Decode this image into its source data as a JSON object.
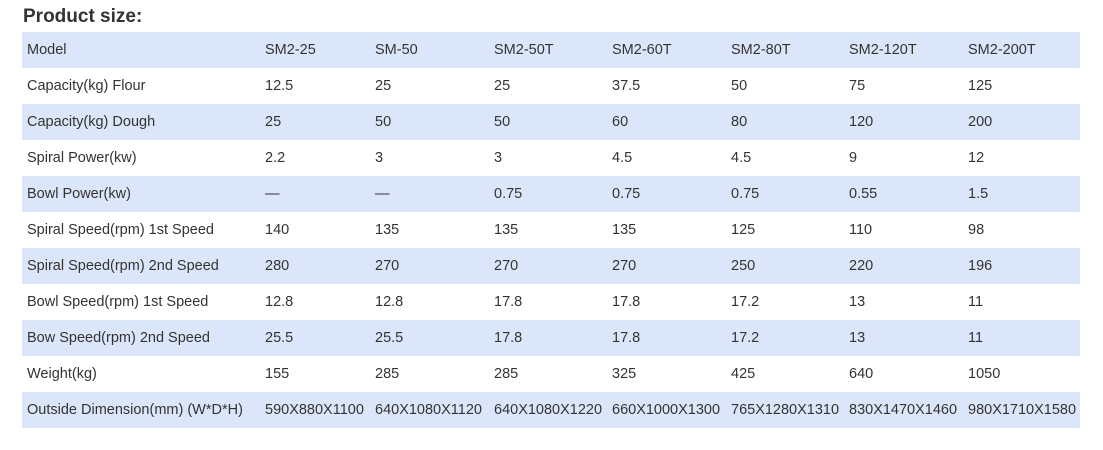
{
  "heading": "Product size:",
  "table": {
    "rows": [
      {
        "label": "Model",
        "cells": [
          "SM2-25",
          "SM-50",
          "SM2-50T",
          "SM2-60T",
          "SM2-80T",
          "SM2-120T",
          "SM2-200T"
        ]
      },
      {
        "label": "Capacity(kg) Flour",
        "cells": [
          "12.5",
          "25",
          "25",
          "37.5",
          "50",
          "75",
          "125"
        ]
      },
      {
        "label": "Capacity(kg) Dough",
        "cells": [
          "25",
          "50",
          "50",
          "60",
          "80",
          "120",
          "200"
        ]
      },
      {
        "label": "Spiral Power(kw)",
        "cells": [
          "2.2",
          "3",
          "3",
          "4.5",
          "4.5",
          "9",
          "12"
        ]
      },
      {
        "label": "Bowl Power(kw)",
        "cells": [
          "—",
          "—",
          "0.75",
          "0.75",
          "0.75",
          "0.55",
          "1.5"
        ]
      },
      {
        "label": "Spiral Speed(rpm) 1st Speed",
        "cells": [
          "140",
          "135",
          "135",
          "135",
          "125",
          "110",
          "98"
        ]
      },
      {
        "label": "Spiral Speed(rpm) 2nd Speed",
        "cells": [
          "280",
          "270",
          "270",
          "270",
          "250",
          "220",
          "196"
        ]
      },
      {
        "label": "Bowl Speed(rpm) 1st Speed",
        "cells": [
          "12.8",
          "12.8",
          "17.8",
          "17.8",
          "17.2",
          "13",
          "11"
        ]
      },
      {
        "label": "Bow Speed(rpm) 2nd Speed",
        "cells": [
          "25.5",
          "25.5",
          "17.8",
          "17.8",
          "17.2",
          "13",
          "11"
        ]
      },
      {
        "label": "Weight(kg)",
        "cells": [
          "155",
          "285",
          "285",
          "325",
          "425",
          "640",
          "1050"
        ]
      },
      {
        "label": "Outside Dimension(mm) (W*D*H)",
        "cells": [
          "590X880X1100",
          "640X1080X1120",
          "640X1080X1220",
          "660X1000X1300",
          "765X1280X1310",
          "830X1470X1460",
          "980X1710X1580"
        ]
      }
    ]
  },
  "colors": {
    "band": "#dce6fb",
    "text": "#333333"
  }
}
